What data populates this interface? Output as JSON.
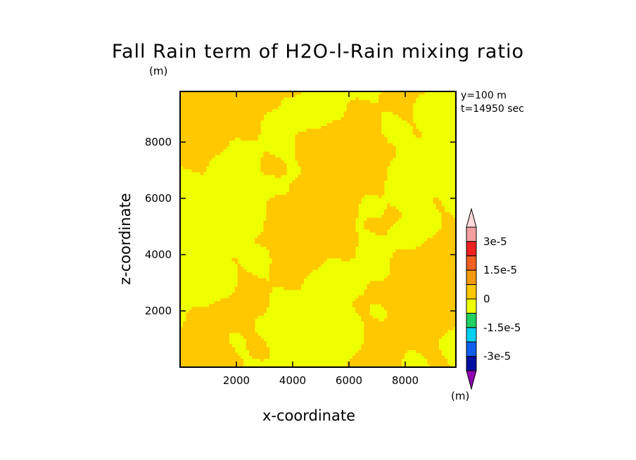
{
  "chart_data": {
    "type": "heatmap",
    "title": "Fall Rain term of H2O-l-Rain mixing ratio",
    "title_unit": "(m)",
    "annotations": [
      "y=100 m",
      "t=14950 sec"
    ],
    "xlabel": "x-coordinate",
    "ylabel": "z-coordinate",
    "xlim": [
      0,
      9800
    ],
    "ylim": [
      0,
      9800
    ],
    "x_ticks": [
      2000,
      4000,
      6000,
      8000
    ],
    "y_ticks": [
      2000,
      4000,
      6000,
      8000
    ],
    "dominant_levels": [
      "0 to 7.5e-6 (orange)",
      "-7.5e-6 to 0 (yellow)"
    ],
    "colorbar": {
      "unit": "(m)",
      "labels": [
        "3e-5",
        "1.5e-5",
        "0",
        "-1.5e-5",
        "-3e-5"
      ],
      "levels_top_to_bottom": [
        {
          "color": "#ffd8d8",
          "arrow": true
        },
        {
          "color": "#f4a0a0"
        },
        {
          "color": "#ee2020"
        },
        {
          "color": "#f06020"
        },
        {
          "color": "#f49a10"
        },
        {
          "color": "#ffc800"
        },
        {
          "color": "#eeff00"
        },
        {
          "color": "#20d060"
        },
        {
          "color": "#00d0f0"
        },
        {
          "color": "#1060f0"
        },
        {
          "color": "#0010a0"
        },
        {
          "color": "#9000b0",
          "arrow": true
        }
      ]
    },
    "colors": {
      "positive_small": "#ffc800",
      "negative_small": "#eeff00"
    }
  }
}
